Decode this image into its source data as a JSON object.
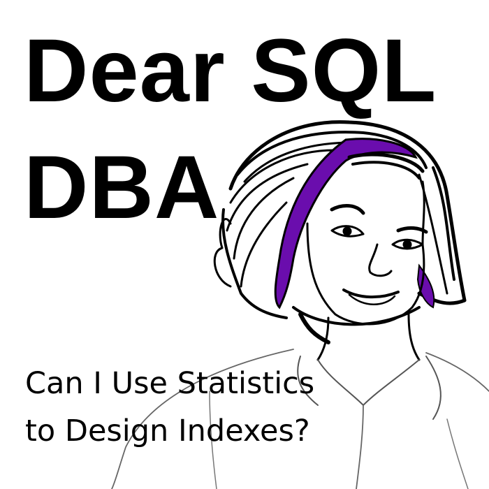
{
  "title": {
    "line1": "Dear SQL",
    "line2": "DBA"
  },
  "subtitle": {
    "line1": "Can I Use Statistics",
    "line2": "to Design Indexes?"
  },
  "illustration": {
    "subject": "sketch-portrait",
    "ink_color": "#000000",
    "accent_color": "#6a0dad"
  }
}
